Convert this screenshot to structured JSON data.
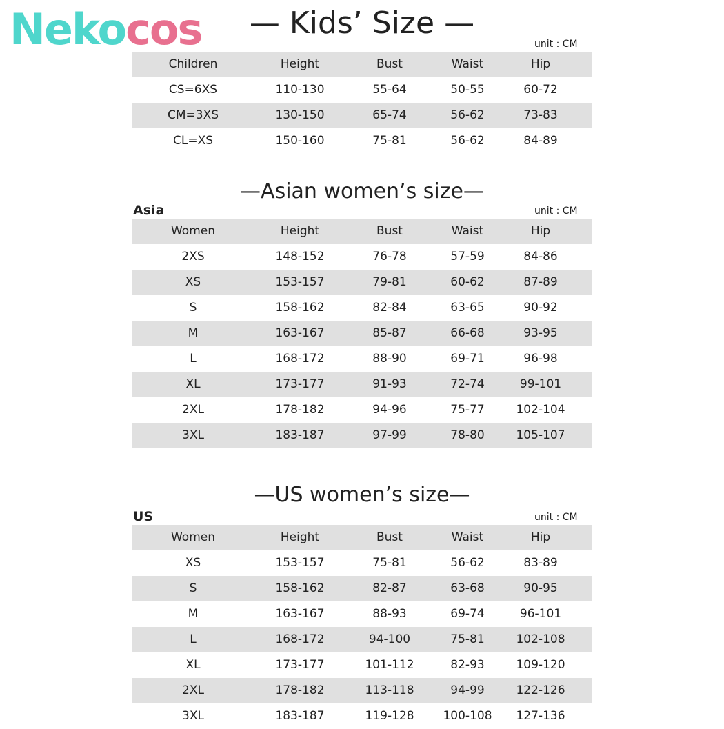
{
  "logo": {
    "part1": "Neko",
    "part2": "cos"
  },
  "sections": [
    {
      "title": "— Kids’ Size —",
      "region": "",
      "unit": "unit : CM",
      "header": [
        "Children",
        "Height",
        "Bust",
        "Waist",
        "Hip"
      ],
      "rows": [
        [
          "CS=6XS",
          "110-130",
          "55-64",
          "50-55",
          "60-72"
        ],
        [
          "CM=3XS",
          "130-150",
          "65-74",
          "56-62",
          "73-83"
        ],
        [
          "CL=XS",
          "150-160",
          "75-81",
          "56-62",
          "84-89"
        ]
      ]
    },
    {
      "title": "—Asian women’s size—",
      "region": "Asia",
      "unit": "unit : CM",
      "header": [
        "Women",
        "Height",
        "Bust",
        "Waist",
        "Hip"
      ],
      "rows": [
        [
          "2XS",
          "148-152",
          "76-78",
          "57-59",
          "84-86"
        ],
        [
          "XS",
          "153-157",
          "79-81",
          "60-62",
          "87-89"
        ],
        [
          "S",
          "158-162",
          "82-84",
          "63-65",
          "90-92"
        ],
        [
          "M",
          "163-167",
          "85-87",
          "66-68",
          "93-95"
        ],
        [
          "L",
          "168-172",
          "88-90",
          "69-71",
          "96-98"
        ],
        [
          "XL",
          "173-177",
          "91-93",
          "72-74",
          "99-101"
        ],
        [
          "2XL",
          "178-182",
          "94-96",
          "75-77",
          "102-104"
        ],
        [
          "3XL",
          "183-187",
          "97-99",
          "78-80",
          "105-107"
        ]
      ]
    },
    {
      "title": "—US women’s size—",
      "region": "US",
      "unit": "unit : CM",
      "header": [
        "Women",
        "Height",
        "Bust",
        "Waist",
        "Hip"
      ],
      "rows": [
        [
          "XS",
          "153-157",
          "75-81",
          "56-62",
          "83-89"
        ],
        [
          "S",
          "158-162",
          "82-87",
          "63-68",
          "90-95"
        ],
        [
          "M",
          "163-167",
          "88-93",
          "69-74",
          "96-101"
        ],
        [
          "L",
          "168-172",
          "94-100",
          "75-81",
          "102-108"
        ],
        [
          "XL",
          "173-177",
          "101-112",
          "82-93",
          "109-120"
        ],
        [
          "2XL",
          "178-182",
          "113-118",
          "94-99",
          "122-126"
        ],
        [
          "3XL",
          "183-187",
          "119-128",
          "100-108",
          "127-136"
        ]
      ]
    }
  ]
}
